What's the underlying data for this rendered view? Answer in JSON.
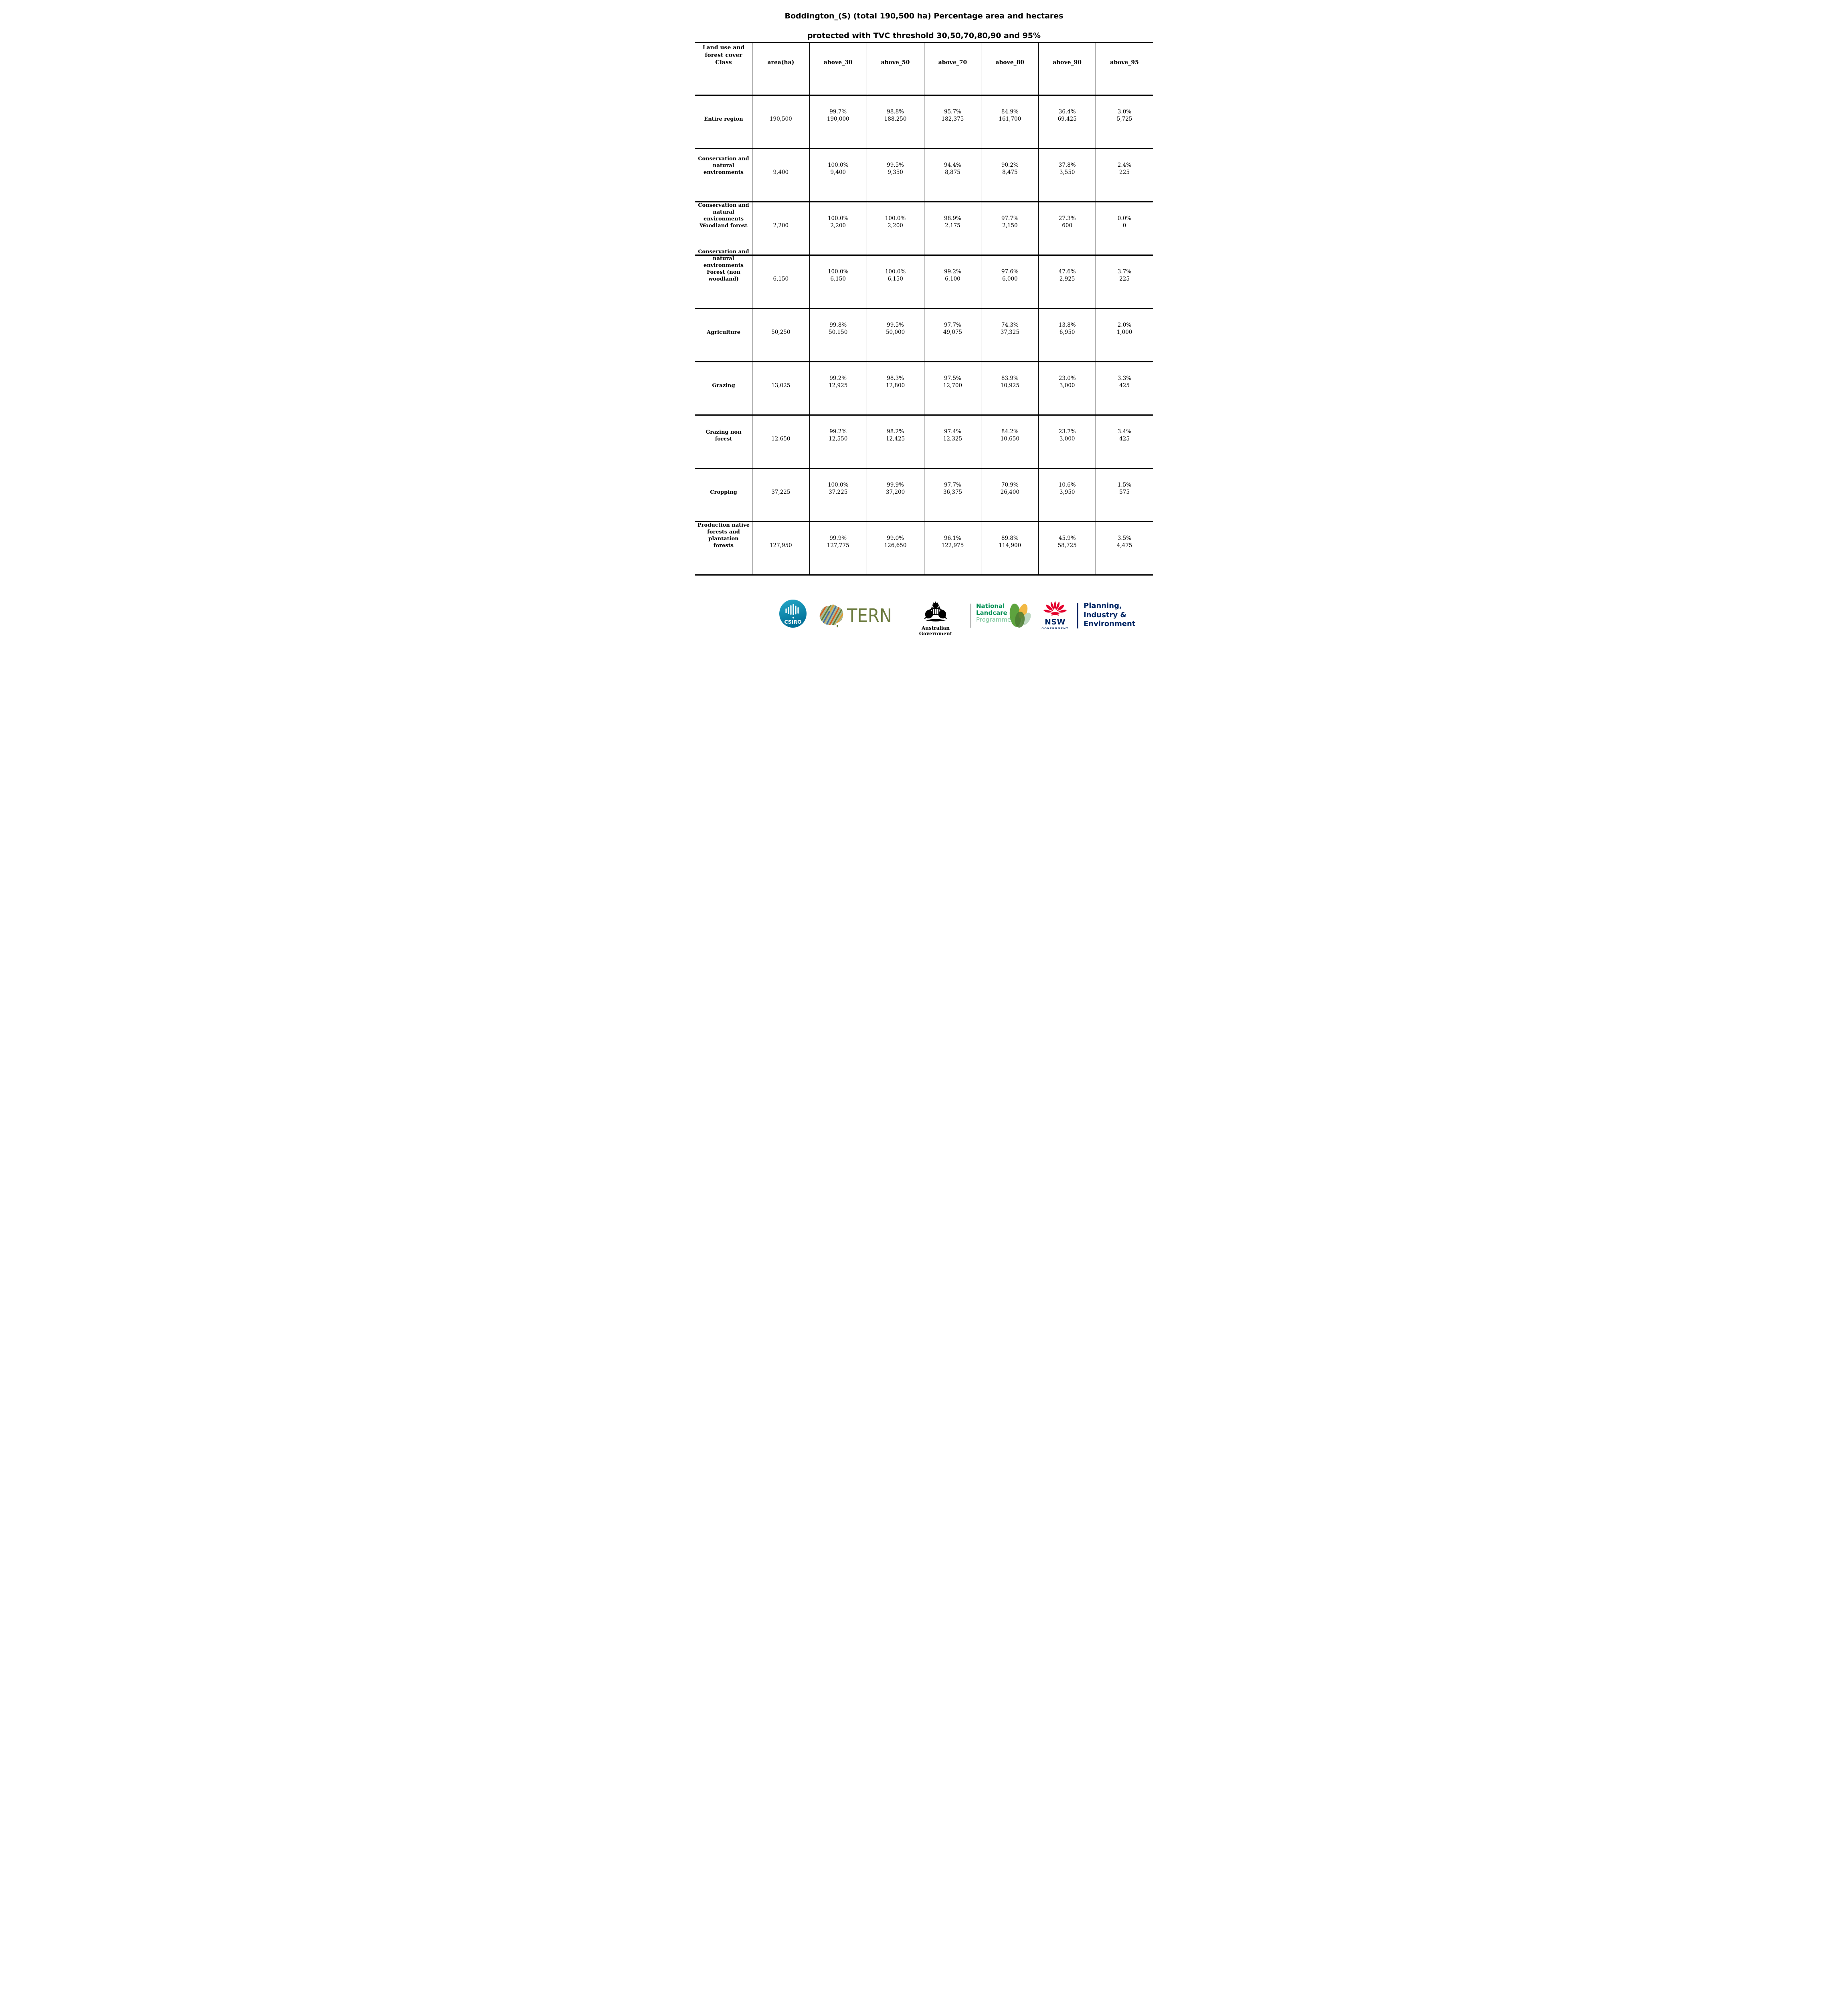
{
  "title": {
    "line1": "Boddington_(S) (total 190,500 ha) Percentage area and hectares",
    "line2": "protected with TVC  threshold 30,50,70,80,90 and 95%"
  },
  "table": {
    "columns": [
      "Land use and\nforest cover\nClass",
      "area(ha)",
      "above_30",
      "above_50",
      "above_70",
      "above_80",
      "above_90",
      "above_95"
    ],
    "rows": [
      {
        "label": "Entire region",
        "area": "190,500",
        "values": [
          {
            "pct": "99.7%",
            "val": "190,000"
          },
          {
            "pct": "98.8%",
            "val": "188,250"
          },
          {
            "pct": "95.7%",
            "val": "182,375"
          },
          {
            "pct": "84.9%",
            "val": "161,700"
          },
          {
            "pct": "36.4%",
            "val": "69,425"
          },
          {
            "pct": "3.0%",
            "val": "5,725"
          }
        ]
      },
      {
        "label": "Conservation and\nnatural\nenvironments",
        "area": "9,400",
        "values": [
          {
            "pct": "100.0%",
            "val": "9,400"
          },
          {
            "pct": "99.5%",
            "val": "9,350"
          },
          {
            "pct": "94.4%",
            "val": "8,875"
          },
          {
            "pct": "90.2%",
            "val": "8,475"
          },
          {
            "pct": "37.8%",
            "val": "3,550"
          },
          {
            "pct": "2.4%",
            "val": "225"
          }
        ]
      },
      {
        "label": "Conservation and\nnatural\nenvironments\nWoodland forest",
        "area": "2,200",
        "values": [
          {
            "pct": "100.0%",
            "val": "2,200"
          },
          {
            "pct": "100.0%",
            "val": "2,200"
          },
          {
            "pct": "98.9%",
            "val": "2,175"
          },
          {
            "pct": "97.7%",
            "val": "2,150"
          },
          {
            "pct": "27.3%",
            "val": "600"
          },
          {
            "pct": "0.0%",
            "val": "0"
          }
        ]
      },
      {
        "label": "Conservation and\nnatural\nenvironments\nForest (non\nwoodland)",
        "area": "6,150",
        "values": [
          {
            "pct": "100.0%",
            "val": "6,150"
          },
          {
            "pct": "100.0%",
            "val": "6,150"
          },
          {
            "pct": "99.2%",
            "val": "6,100"
          },
          {
            "pct": "97.6%",
            "val": "6,000"
          },
          {
            "pct": "47.6%",
            "val": "2,925"
          },
          {
            "pct": "3.7%",
            "val": "225"
          }
        ]
      },
      {
        "label": "Agriculture",
        "area": "50,250",
        "values": [
          {
            "pct": "99.8%",
            "val": "50,150"
          },
          {
            "pct": "99.5%",
            "val": "50,000"
          },
          {
            "pct": "97.7%",
            "val": "49,075"
          },
          {
            "pct": "74.3%",
            "val": "37,325"
          },
          {
            "pct": "13.8%",
            "val": "6,950"
          },
          {
            "pct": "2.0%",
            "val": "1,000"
          }
        ]
      },
      {
        "label": "Grazing",
        "area": "13,025",
        "values": [
          {
            "pct": "99.2%",
            "val": "12,925"
          },
          {
            "pct": "98.3%",
            "val": "12,800"
          },
          {
            "pct": "97.5%",
            "val": "12,700"
          },
          {
            "pct": "83.9%",
            "val": "10,925"
          },
          {
            "pct": "23.0%",
            "val": "3,000"
          },
          {
            "pct": "3.3%",
            "val": "425"
          }
        ]
      },
      {
        "label": "Grazing non\nforest",
        "area": "12,650",
        "values": [
          {
            "pct": "99.2%",
            "val": "12,550"
          },
          {
            "pct": "98.2%",
            "val": "12,425"
          },
          {
            "pct": "97.4%",
            "val": "12,325"
          },
          {
            "pct": "84.2%",
            "val": "10,650"
          },
          {
            "pct": "23.7%",
            "val": "3,000"
          },
          {
            "pct": "3.4%",
            "val": "425"
          }
        ]
      },
      {
        "label": "Cropping",
        "area": "37,225",
        "values": [
          {
            "pct": "100.0%",
            "val": "37,225"
          },
          {
            "pct": "99.9%",
            "val": "37,200"
          },
          {
            "pct": "97.7%",
            "val": "36,375"
          },
          {
            "pct": "70.9%",
            "val": "26,400"
          },
          {
            "pct": "10.6%",
            "val": "3,950"
          },
          {
            "pct": "1.5%",
            "val": "575"
          }
        ]
      },
      {
        "label": "Production native\nforests and\nplantation\nforests",
        "area": "127,950",
        "values": [
          {
            "pct": "99.9%",
            "val": "127,775"
          },
          {
            "pct": "99.0%",
            "val": "126,650"
          },
          {
            "pct": "96.1%",
            "val": "122,975"
          },
          {
            "pct": "89.8%",
            "val": "114,900"
          },
          {
            "pct": "45.9%",
            "val": "58,725"
          },
          {
            "pct": "3.5%",
            "val": "4,475"
          }
        ]
      }
    ]
  },
  "footer": {
    "csiro": {
      "label": "CSIRO",
      "color": "#0e93b8"
    },
    "tern": {
      "label": "TERN",
      "color": "#6b7a3e"
    },
    "ausgov": {
      "label": "Australian Government"
    },
    "landcare": {
      "lines": [
        "National",
        "Landcare",
        "Programme"
      ],
      "green": "#009054",
      "light_green": "#79c699"
    },
    "nsw": {
      "label": "NSW",
      "sub": "GOVERNMENT",
      "red": "#e4032e",
      "navy": "#002664"
    },
    "planning": {
      "lines": [
        "Planning,",
        "Industry &",
        "Environment"
      ],
      "navy": "#002664"
    }
  }
}
